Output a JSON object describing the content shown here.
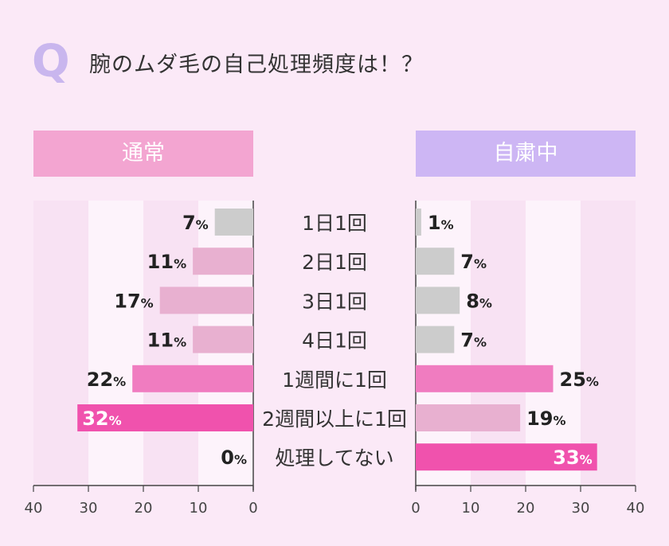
{
  "question": {
    "mark": "Q",
    "text": "腕のムダ毛の自己処理頻度は！？"
  },
  "panels": [
    {
      "label": "通常",
      "color": "#f3a5d1"
    },
    {
      "label": "自粛中",
      "color": "#cdb6f4"
    }
  ],
  "colors": {
    "gray": "#cccccc",
    "light_pink": "#e8b0d0",
    "mid_pink": "#f07cc0",
    "hot_pink": "#f052ad"
  },
  "chart_data": {
    "type": "bar",
    "categories": [
      "1日1回",
      "2日1回",
      "3日1回",
      "4日1回",
      "1週間に1回",
      "2週間以上に1回",
      "処理してない"
    ],
    "series": [
      {
        "name": "通常",
        "values": [
          7,
          11,
          17,
          11,
          22,
          32,
          0
        ],
        "colors": [
          "gray",
          "light_pink",
          "light_pink",
          "light_pink",
          "mid_pink",
          "hot_pink",
          "hot_pink"
        ],
        "label_inside": [
          false,
          false,
          false,
          false,
          false,
          true,
          false
        ]
      },
      {
        "name": "自粛中",
        "values": [
          1,
          7,
          8,
          7,
          25,
          19,
          33
        ],
        "colors": [
          "gray",
          "gray",
          "gray",
          "gray",
          "mid_pink",
          "light_pink",
          "hot_pink"
        ],
        "label_inside": [
          false,
          false,
          false,
          false,
          false,
          false,
          true
        ]
      }
    ],
    "unit": "%",
    "xlim": [
      0,
      40
    ],
    "ticks": [
      0,
      10,
      20,
      30,
      40
    ],
    "grid": true
  }
}
